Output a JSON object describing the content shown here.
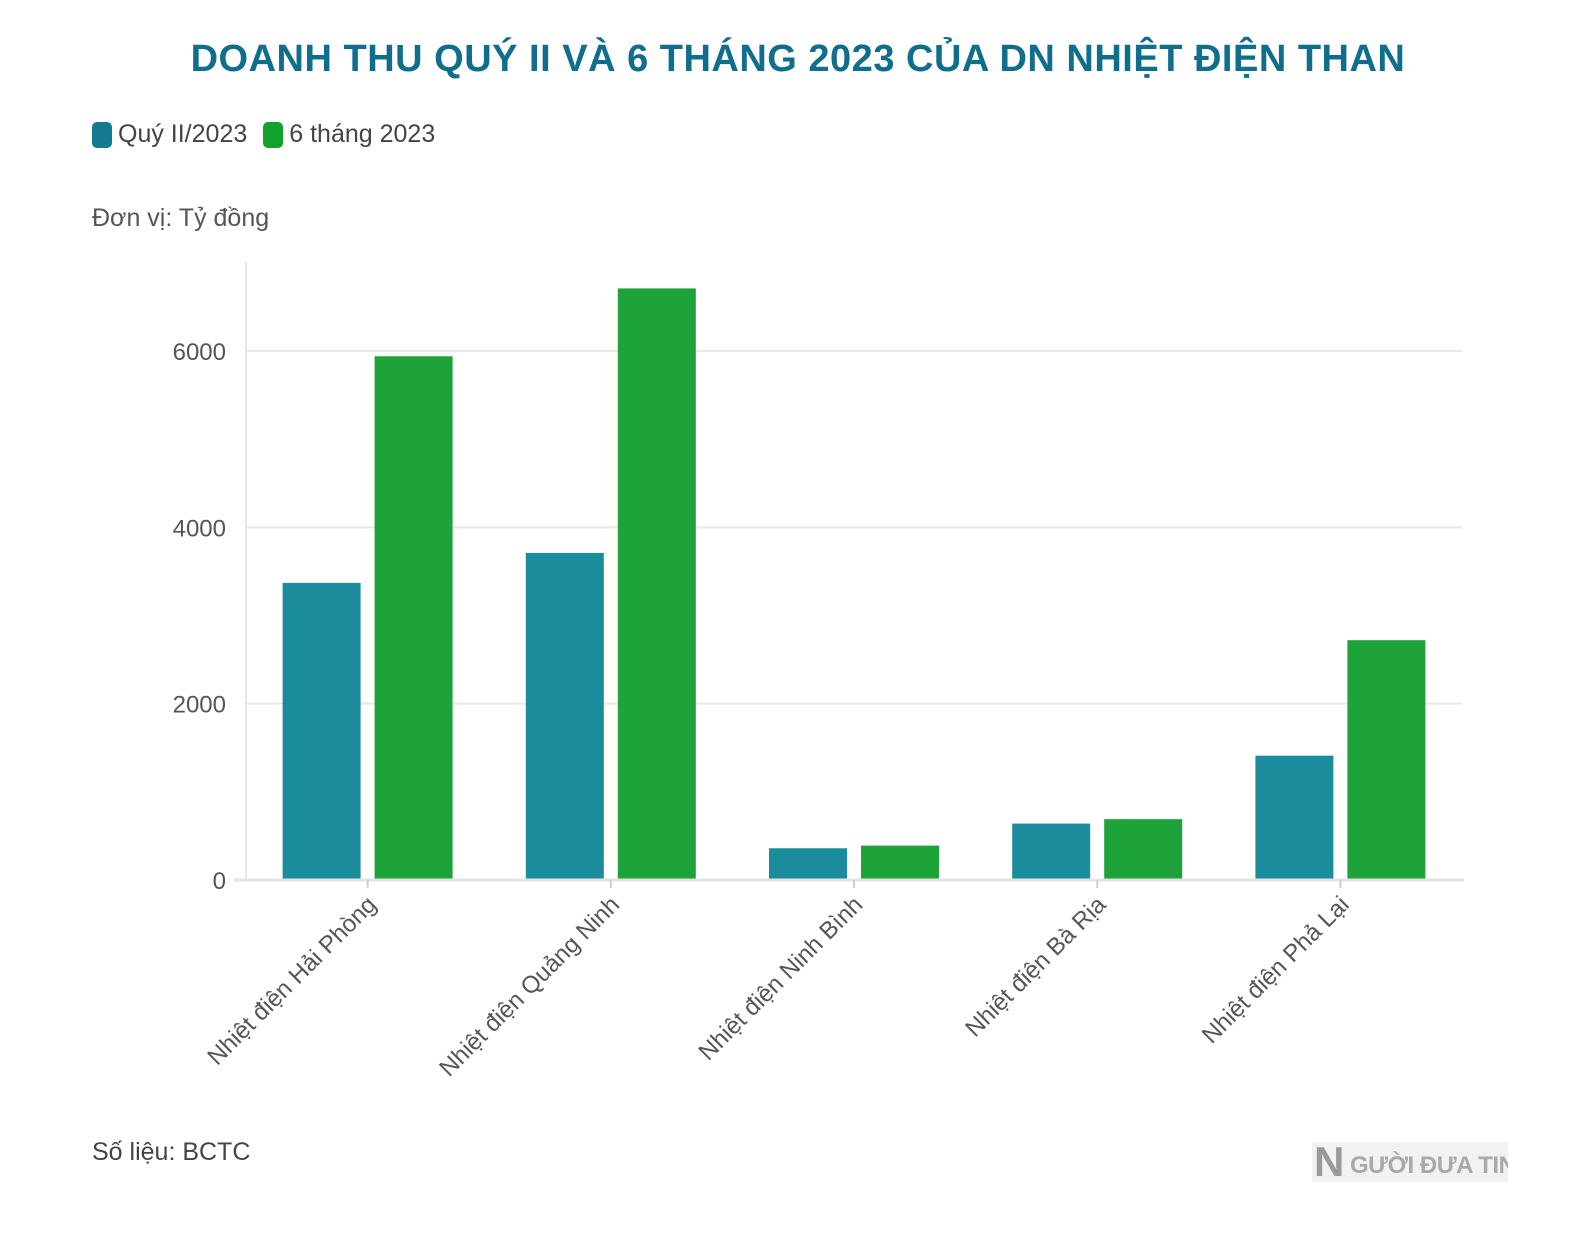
{
  "chart_data": {
    "type": "bar",
    "title": "DOANH THU QUÝ II VÀ 6 THÁNG 2023 CỦA DN NHIỆT ĐIỆN THAN",
    "unit": "Đơn vị: Tỷ đồng",
    "source": "Số liệu: BCTC",
    "categories": [
      "Nhiệt điện Hải Phòng",
      "Nhiệt điện Quảng Ninh",
      "Nhiệt điện Ninh Bình",
      "Nhiệt điện Bà Rịa",
      "Nhiệt điện Phả Lại"
    ],
    "series": [
      {
        "name": "Quý II/2023",
        "color": "#1b8c9c",
        "values": [
          3370,
          3710,
          360,
          640,
          1410
        ]
      },
      {
        "name": "6 tháng 2023",
        "color": "#1ea23a",
        "values": [
          5940,
          6710,
          390,
          690,
          2720
        ]
      }
    ],
    "yticks": [
      0,
      2000,
      4000,
      6000
    ],
    "ylim": [
      0,
      7000
    ],
    "grid": true,
    "legend_position": "top-left"
  },
  "legend_colors": {
    "series_1": "#137a8f",
    "series_2": "#13a12e"
  },
  "brand": {
    "logo_text": "NGƯỜI ĐƯA TIN",
    "logo_initial": "N"
  }
}
